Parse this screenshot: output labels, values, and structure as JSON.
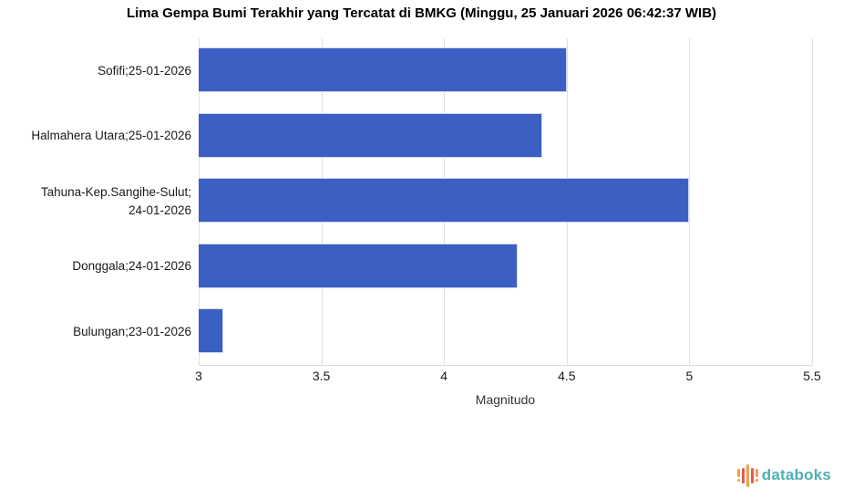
{
  "title": "Lima Gempa Bumi Terakhir yang Tercatat di BMKG (Minggu, 25 Januari 2026 06:42:37 WIB)",
  "chart_data": {
    "type": "bar",
    "orientation": "horizontal",
    "title": "Lima Gempa Bumi Terakhir yang Tercatat di BMKG (Minggu, 25 Januari 2026 06:42:37 WIB)",
    "categories": [
      "Sofifi;25-01-2026",
      "Halmahera Utara;25-01-2026",
      "Tahuna-Kep.Sangihe-Sulut; 24-01-2026",
      "Donggala;24-01-2026",
      "Bulungan;23-01-2026"
    ],
    "category_lines": [
      [
        "Sofifi;25-01-2026"
      ],
      [
        "Halmahera Utara;25-01-2026"
      ],
      [
        "Tahuna-Kep.Sangihe-Sulut;",
        "24-01-2026"
      ],
      [
        "Donggala;24-01-2026"
      ],
      [
        "Bulungan;23-01-2026"
      ]
    ],
    "values": [
      4.5,
      4.4,
      5.0,
      4.3,
      3.1
    ],
    "xlabel": "Magnitudo",
    "ylabel": "",
    "xlim": [
      3,
      5.5
    ],
    "xticks": [
      3,
      3.5,
      4,
      4.5,
      5,
      5.5
    ],
    "xtick_labels": [
      "3",
      "3.5",
      "4",
      "4.5",
      "5",
      "5.5"
    ],
    "grid": true,
    "legend": false
  },
  "colors": {
    "bar": "#3B5FC3",
    "grid": "#e0e0e0",
    "brand_text": "#4FAFB4",
    "brand_orange": "#F0A04B",
    "brand_red": "#E55C4B"
  },
  "footer": {
    "brand": "databoks"
  }
}
